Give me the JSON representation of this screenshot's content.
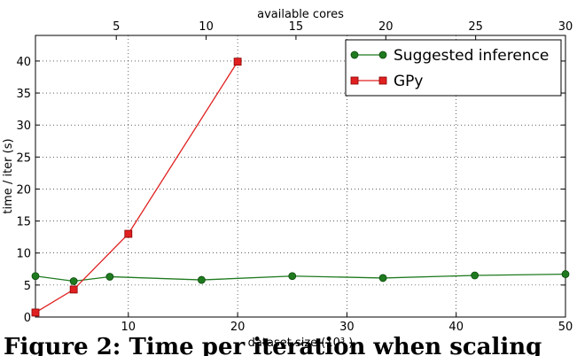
{
  "chart_data": {
    "type": "line",
    "title": "",
    "xlabel": "dataset size (10³ )",
    "ylabel": "time / iter (s)",
    "top_xlabel": "available cores",
    "xlim": [
      1.5,
      50
    ],
    "ylim": [
      0,
      44
    ],
    "top_xlim": [
      0.5,
      30
    ],
    "xticks": [
      10,
      20,
      30,
      40,
      50
    ],
    "yticks": [
      0,
      5,
      10,
      15,
      20,
      25,
      30,
      35,
      40
    ],
    "top_xticks": [
      5,
      10,
      15,
      20,
      25,
      30
    ],
    "grid": true,
    "legend_position": "top-right",
    "series": [
      {
        "name": "Suggested inference",
        "color": "#1f7a1f",
        "marker": "circle",
        "x": [
          1.5,
          5,
          8.3,
          16.7,
          25,
          33.3,
          41.7,
          50
        ],
        "y": [
          6.4,
          5.6,
          6.3,
          5.8,
          6.4,
          6.1,
          6.5,
          6.7
        ]
      },
      {
        "name": "GPy",
        "color": "#e02020",
        "marker": "square",
        "x": [
          1.5,
          5,
          10,
          20
        ],
        "y": [
          0.7,
          4.3,
          13.0,
          39.9
        ]
      }
    ]
  },
  "caption": {
    "text": "Figure 2:  Time per iteration when scaling"
  }
}
